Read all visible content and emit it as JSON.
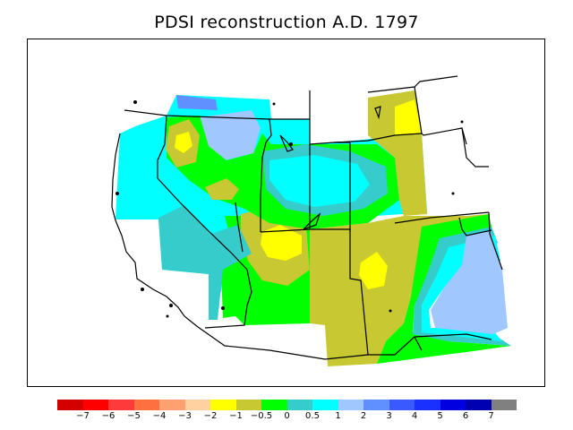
{
  "title": "PDSI reconstruction A.D. 1797",
  "map": {
    "region": "southwestern United States",
    "background_color": "#ffffff",
    "outline_color": "#000000"
  },
  "legend": {
    "colors": [
      "#d40000",
      "#ff0000",
      "#ff3a3a",
      "#ff7040",
      "#ffa070",
      "#ffd0a0",
      "#ffff00",
      "#c8c832",
      "#00ff00",
      "#36cccc",
      "#00ffff",
      "#a0c8ff",
      "#6090ff",
      "#3a5aff",
      "#1a30ff",
      "#0000e0",
      "#0000b0",
      "#808080"
    ],
    "tick_labels": [
      "−7",
      "−6",
      "−5",
      "−4",
      "−3",
      "−2",
      "−1",
      "−0.5",
      "0",
      "0.5",
      "1",
      "2",
      "3",
      "4",
      "5",
      "6",
      "7"
    ]
  }
}
